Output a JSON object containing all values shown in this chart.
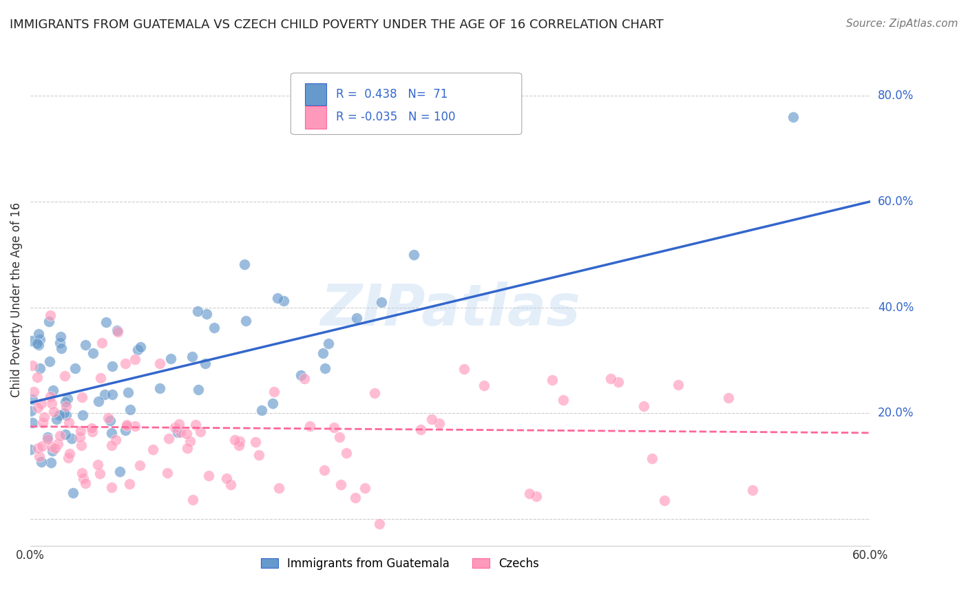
{
  "title": "IMMIGRANTS FROM GUATEMALA VS CZECH CHILD POVERTY UNDER THE AGE OF 16 CORRELATION CHART",
  "source": "Source: ZipAtlas.com",
  "ylabel": "Child Poverty Under the Age of 16",
  "xlim": [
    0.0,
    0.6
  ],
  "ylim": [
    -0.05,
    0.88
  ],
  "ytick_positions": [
    0.0,
    0.2,
    0.4,
    0.6,
    0.8
  ],
  "yticklabels": [
    "",
    "20.0%",
    "40.0%",
    "60.0%",
    "80.0%"
  ],
  "blue_color": "#6699CC",
  "pink_color": "#FF99BB",
  "blue_line_color": "#3366CC",
  "pink_line_color": "#FF6699",
  "legend_r_blue": "0.438",
  "legend_n_blue": "71",
  "legend_r_pink": "-0.035",
  "legend_n_pink": "100",
  "watermark": "ZIPatlas",
  "background_color": "#FFFFFF",
  "grid_color": "#CCCCCC",
  "blue_regression": [
    0.0,
    0.22,
    0.6,
    0.6
  ],
  "pink_regression": [
    0.0,
    0.175,
    0.6,
    0.163
  ]
}
